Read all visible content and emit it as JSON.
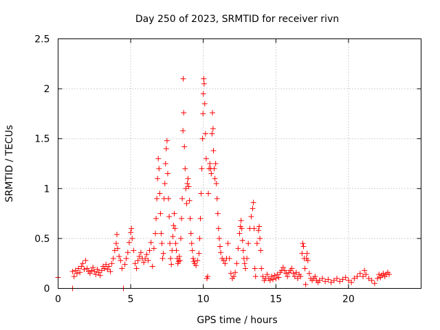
{
  "chart_data": {
    "type": "scatter",
    "title": "Day 250 of 2023, SRMTID for receiver rivn",
    "xlabel": "GPS time / hours",
    "ylabel": "SRMTID / TECUs",
    "xlim": [
      0,
      25
    ],
    "ylim": [
      0,
      2.5
    ],
    "xticks": [
      0,
      5,
      10,
      15,
      20
    ],
    "xtick_labels": [
      "0",
      "5",
      "10",
      "15",
      "20"
    ],
    "yticks": [
      0,
      0.5,
      1,
      1.5,
      2,
      2.5
    ],
    "ytick_labels": [
      "0",
      "0.5",
      "1",
      "1.5",
      "2",
      "2.5"
    ],
    "grid": true,
    "marker": "+",
    "series": [
      {
        "name": "SRMTID",
        "color": "#ff0000",
        "points": [
          [
            0.0,
            0.11
          ],
          [
            1.0,
            0.0
          ],
          [
            1.0,
            0.17
          ],
          [
            1.1,
            0.12
          ],
          [
            1.2,
            0.18
          ],
          [
            1.3,
            0.15
          ],
          [
            1.4,
            0.2
          ],
          [
            1.5,
            0.16
          ],
          [
            1.6,
            0.22
          ],
          [
            1.7,
            0.25
          ],
          [
            1.8,
            0.19
          ],
          [
            1.9,
            0.28
          ],
          [
            2.0,
            0.2
          ],
          [
            2.1,
            0.17
          ],
          [
            2.2,
            0.15
          ],
          [
            2.3,
            0.18
          ],
          [
            2.4,
            0.21
          ],
          [
            2.5,
            0.17
          ],
          [
            2.6,
            0.14
          ],
          [
            2.7,
            0.19
          ],
          [
            2.8,
            0.16
          ],
          [
            2.9,
            0.13
          ],
          [
            3.0,
            0.18
          ],
          [
            3.1,
            0.22
          ],
          [
            3.2,
            0.2
          ],
          [
            3.3,
            0.24
          ],
          [
            3.4,
            0.19
          ],
          [
            3.5,
            0.22
          ],
          [
            3.6,
            0.17
          ],
          [
            3.7,
            0.25
          ],
          [
            3.8,
            0.3
          ],
          [
            3.9,
            0.38
          ],
          [
            4.0,
            0.45
          ],
          [
            4.05,
            0.54
          ],
          [
            4.1,
            0.4
          ],
          [
            4.2,
            0.32
          ],
          [
            4.3,
            0.28
          ],
          [
            4.4,
            0.2
          ],
          [
            4.5,
            0.0
          ],
          [
            4.6,
            0.24
          ],
          [
            4.7,
            0.3
          ],
          [
            4.8,
            0.36
          ],
          [
            4.9,
            0.46
          ],
          [
            5.0,
            0.56
          ],
          [
            5.05,
            0.6
          ],
          [
            5.1,
            0.5
          ],
          [
            5.2,
            0.38
          ],
          [
            5.3,
            0.25
          ],
          [
            5.4,
            0.2
          ],
          [
            5.5,
            0.28
          ],
          [
            5.6,
            0.32
          ],
          [
            5.7,
            0.36
          ],
          [
            5.8,
            0.3
          ],
          [
            5.9,
            0.26
          ],
          [
            6.0,
            0.3
          ],
          [
            6.1,
            0.34
          ],
          [
            6.2,
            0.28
          ],
          [
            6.3,
            0.38
          ],
          [
            6.4,
            0.46
          ],
          [
            6.5,
            0.22
          ],
          [
            6.6,
            0.4
          ],
          [
            6.7,
            0.55
          ],
          [
            6.75,
            0.7
          ],
          [
            6.8,
            0.9
          ],
          [
            6.85,
            1.1
          ],
          [
            6.9,
            1.3
          ],
          [
            6.95,
            1.2
          ],
          [
            7.0,
            0.95
          ],
          [
            7.05,
            0.75
          ],
          [
            7.1,
            0.55
          ],
          [
            7.15,
            0.45
          ],
          [
            7.2,
            0.3
          ],
          [
            7.25,
            0.35
          ],
          [
            7.3,
            0.9
          ],
          [
            7.35,
            1.05
          ],
          [
            7.4,
            1.25
          ],
          [
            7.45,
            1.4
          ],
          [
            7.5,
            1.48
          ],
          [
            7.55,
            1.15
          ],
          [
            7.6,
            0.9
          ],
          [
            7.65,
            0.72
          ],
          [
            7.7,
            0.45
          ],
          [
            7.75,
            0.3
          ],
          [
            7.8,
            0.24
          ],
          [
            7.85,
            0.38
          ],
          [
            7.9,
            0.52
          ],
          [
            7.95,
            0.63
          ],
          [
            8.0,
            0.75
          ],
          [
            8.05,
            0.6
          ],
          [
            8.1,
            0.45
          ],
          [
            8.15,
            0.38
          ],
          [
            8.2,
            0.3
          ],
          [
            8.25,
            0.25
          ],
          [
            8.3,
            0.27
          ],
          [
            8.35,
            0.32
          ],
          [
            8.4,
            0.28
          ],
          [
            8.45,
            0.5
          ],
          [
            8.5,
            0.7
          ],
          [
            8.55,
            0.9
          ],
          [
            8.6,
            1.58
          ],
          [
            8.62,
            2.1
          ],
          [
            8.65,
            1.76
          ],
          [
            8.7,
            1.42
          ],
          [
            8.75,
            1.2
          ],
          [
            8.8,
            1.0
          ],
          [
            8.85,
            0.85
          ],
          [
            8.9,
            1.05
          ],
          [
            8.95,
            1.1
          ],
          [
            9.0,
            1.02
          ],
          [
            9.05,
            0.88
          ],
          [
            9.1,
            0.7
          ],
          [
            9.15,
            0.55
          ],
          [
            9.2,
            0.45
          ],
          [
            9.25,
            0.38
          ],
          [
            9.3,
            0.3
          ],
          [
            9.35,
            0.27
          ],
          [
            9.4,
            0.25
          ],
          [
            9.5,
            0.23
          ],
          [
            9.6,
            0.28
          ],
          [
            9.7,
            0.35
          ],
          [
            9.75,
            0.5
          ],
          [
            9.8,
            0.7
          ],
          [
            9.85,
            0.95
          ],
          [
            9.9,
            1.2
          ],
          [
            9.95,
            1.5
          ],
          [
            9.98,
            1.75
          ],
          [
            10.0,
            1.95
          ],
          [
            10.03,
            2.1
          ],
          [
            10.06,
            2.05
          ],
          [
            10.1,
            1.85
          ],
          [
            10.15,
            1.55
          ],
          [
            10.2,
            1.3
          ],
          [
            10.25,
            0.1
          ],
          [
            10.3,
            0.12
          ],
          [
            10.35,
            0.95
          ],
          [
            10.4,
            1.2
          ],
          [
            10.45,
            1.25
          ],
          [
            10.5,
            1.2
          ],
          [
            10.55,
            1.15
          ],
          [
            10.6,
            1.55
          ],
          [
            10.63,
            1.76
          ],
          [
            10.67,
            1.6
          ],
          [
            10.7,
            1.38
          ],
          [
            10.75,
            1.2
          ],
          [
            10.8,
            1.1
          ],
          [
            10.85,
            1.25
          ],
          [
            10.9,
            1.05
          ],
          [
            10.95,
            0.9
          ],
          [
            11.0,
            0.75
          ],
          [
            11.05,
            0.6
          ],
          [
            11.1,
            0.5
          ],
          [
            11.15,
            0.42
          ],
          [
            11.2,
            0.36
          ],
          [
            11.3,
            0.3
          ],
          [
            11.4,
            0.28
          ],
          [
            11.5,
            0.25
          ],
          [
            11.6,
            0.3
          ],
          [
            11.7,
            0.45
          ],
          [
            11.8,
            0.3
          ],
          [
            11.9,
            0.15
          ],
          [
            12.0,
            0.1
          ],
          [
            12.1,
            0.12
          ],
          [
            12.2,
            0.16
          ],
          [
            12.3,
            0.25
          ],
          [
            12.4,
            0.4
          ],
          [
            12.5,
            0.55
          ],
          [
            12.55,
            0.62
          ],
          [
            12.6,
            0.68
          ],
          [
            12.65,
            0.6
          ],
          [
            12.7,
            0.48
          ],
          [
            12.75,
            0.38
          ],
          [
            12.8,
            0.3
          ],
          [
            12.85,
            0.25
          ],
          [
            12.9,
            0.2
          ],
          [
            13.0,
            0.3
          ],
          [
            13.1,
            0.45
          ],
          [
            13.2,
            0.6
          ],
          [
            13.3,
            0.72
          ],
          [
            13.4,
            0.8
          ],
          [
            13.45,
            0.86
          ],
          [
            13.5,
            0.6
          ],
          [
            13.55,
            0.2
          ],
          [
            13.6,
            0.12
          ],
          [
            13.7,
            0.45
          ],
          [
            13.8,
            0.58
          ],
          [
            13.85,
            0.62
          ],
          [
            13.9,
            0.5
          ],
          [
            13.95,
            0.38
          ],
          [
            14.0,
            0.2
          ],
          [
            14.1,
            0.12
          ],
          [
            14.2,
            0.08
          ],
          [
            14.3,
            0.1
          ],
          [
            14.4,
            0.14
          ],
          [
            14.5,
            0.1
          ],
          [
            14.6,
            0.08
          ],
          [
            14.7,
            0.12
          ],
          [
            14.8,
            0.09
          ],
          [
            14.9,
            0.13
          ],
          [
            15.0,
            0.1
          ],
          [
            15.1,
            0.14
          ],
          [
            15.2,
            0.11
          ],
          [
            15.3,
            0.16
          ],
          [
            15.4,
            0.18
          ],
          [
            15.5,
            0.21
          ],
          [
            15.6,
            0.18
          ],
          [
            15.7,
            0.15
          ],
          [
            15.8,
            0.12
          ],
          [
            15.9,
            0.16
          ],
          [
            16.0,
            0.18
          ],
          [
            16.1,
            0.2
          ],
          [
            16.2,
            0.15
          ],
          [
            16.3,
            0.12
          ],
          [
            16.4,
            0.16
          ],
          [
            16.5,
            0.1
          ],
          [
            16.6,
            0.14
          ],
          [
            16.7,
            0.12
          ],
          [
            16.8,
            0.35
          ],
          [
            16.85,
            0.45
          ],
          [
            16.9,
            0.42
          ],
          [
            16.95,
            0.3
          ],
          [
            17.0,
            0.2
          ],
          [
            17.05,
            0.04
          ],
          [
            17.1,
            0.3
          ],
          [
            17.15,
            0.35
          ],
          [
            17.2,
            0.28
          ],
          [
            17.3,
            0.15
          ],
          [
            17.4,
            0.1
          ],
          [
            17.5,
            0.08
          ],
          [
            17.6,
            0.1
          ],
          [
            17.7,
            0.12
          ],
          [
            17.8,
            0.08
          ],
          [
            17.9,
            0.06
          ],
          [
            18.0,
            0.08
          ],
          [
            18.2,
            0.1
          ],
          [
            18.4,
            0.07
          ],
          [
            18.6,
            0.09
          ],
          [
            18.8,
            0.06
          ],
          [
            19.0,
            0.08
          ],
          [
            19.2,
            0.1
          ],
          [
            19.4,
            0.07
          ],
          [
            19.6,
            0.09
          ],
          [
            19.8,
            0.11
          ],
          [
            20.0,
            0.08
          ],
          [
            20.2,
            0.06
          ],
          [
            20.4,
            0.1
          ],
          [
            20.6,
            0.12
          ],
          [
            20.8,
            0.15
          ],
          [
            21.0,
            0.12
          ],
          [
            21.1,
            0.18
          ],
          [
            21.2,
            0.14
          ],
          [
            21.4,
            0.1
          ],
          [
            21.6,
            0.08
          ],
          [
            21.8,
            0.05
          ],
          [
            22.0,
            0.1
          ],
          [
            22.1,
            0.14
          ],
          [
            22.2,
            0.11
          ],
          [
            22.3,
            0.13
          ],
          [
            22.4,
            0.15
          ],
          [
            22.5,
            0.12
          ],
          [
            22.6,
            0.14
          ],
          [
            22.7,
            0.16
          ],
          [
            22.8,
            0.14
          ]
        ]
      }
    ]
  }
}
